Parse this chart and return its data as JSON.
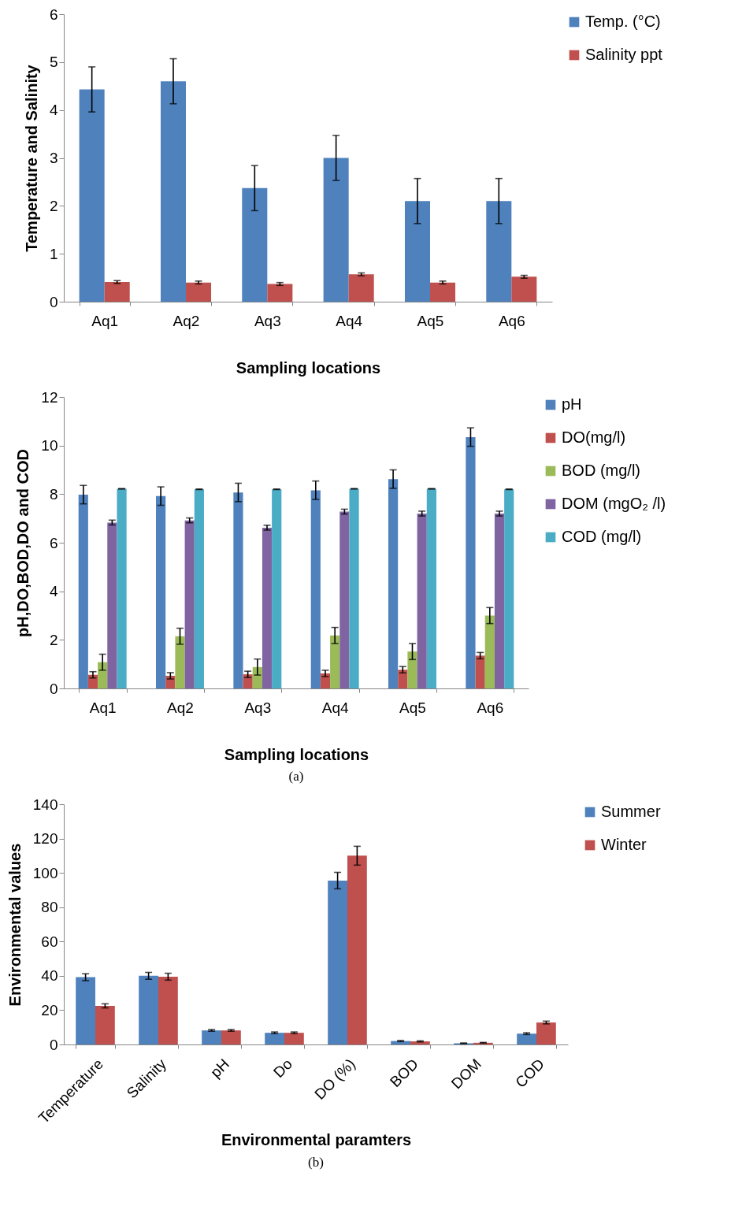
{
  "chart_data": [
    {
      "type": "bar",
      "xlabel": "Sampling locations",
      "ylabel": "Temperature and  Salinity",
      "categories": [
        "Aq1",
        "Aq2",
        "Aq3",
        "Aq4",
        "Aq5",
        "Aq6"
      ],
      "series": [
        {
          "name": "Temp. (°C)",
          "color": "#4f81bd",
          "values": [
            4.43,
            4.6,
            2.37,
            3.0,
            2.1,
            2.1
          ],
          "errors": [
            0.47,
            0.47,
            0.47,
            0.47,
            0.47,
            0.47
          ]
        },
        {
          "name": "Salinity ppt",
          "color": "#c0504d",
          "values": [
            0.41,
            0.4,
            0.37,
            0.57,
            0.4,
            0.52
          ],
          "errors": [
            0.03,
            0.03,
            0.03,
            0.03,
            0.03,
            0.03
          ]
        }
      ],
      "ylim": [
        0,
        6
      ],
      "yticks": [
        0,
        1,
        2,
        3,
        4,
        5,
        6
      ],
      "grid": false,
      "legend": "right"
    },
    {
      "type": "bar",
      "xlabel": "Sampling locations",
      "ylabel": "pH,DO,BOD,DO  and COD",
      "categories": [
        "Aq1",
        "Aq2",
        "Aq3",
        "Aq4",
        "Aq5",
        "Aq6"
      ],
      "series": [
        {
          "name": "pH",
          "color": "#4f81bd",
          "values": [
            7.98,
            7.92,
            8.07,
            8.16,
            8.62,
            10.35
          ],
          "errors": [
            0.38,
            0.38,
            0.38,
            0.38,
            0.38,
            0.38
          ]
        },
        {
          "name": "DO(mg/l)",
          "color": "#c0504d",
          "values": [
            0.56,
            0.52,
            0.58,
            0.62,
            0.77,
            1.35
          ],
          "errors": [
            0.13,
            0.13,
            0.13,
            0.13,
            0.13,
            0.13
          ]
        },
        {
          "name": "BOD (mg/l)",
          "color": "#9bbb59",
          "values": [
            1.08,
            2.15,
            0.88,
            2.18,
            1.52,
            3.0
          ],
          "errors": [
            0.33,
            0.33,
            0.33,
            0.33,
            0.33,
            0.33
          ]
        },
        {
          "name": "DOM (mgO₂ /l)",
          "color": "#8064a2",
          "values": [
            6.83,
            6.92,
            6.62,
            7.28,
            7.2,
            7.2
          ],
          "errors": [
            0.1,
            0.1,
            0.1,
            0.1,
            0.1,
            0.1
          ]
        },
        {
          "name": "COD (mg/l)",
          "color": "#4bacc6",
          "values": [
            8.22,
            8.2,
            8.2,
            8.22,
            8.22,
            8.2
          ],
          "errors": [
            0.01,
            0.01,
            0.01,
            0.01,
            0.01,
            0.01
          ]
        }
      ],
      "ylim": [
        0,
        12
      ],
      "yticks": [
        0,
        2,
        4,
        6,
        8,
        10,
        12
      ],
      "grid": false,
      "legend": "right",
      "annotations": [
        "(a)"
      ]
    },
    {
      "type": "bar",
      "xlabel": "Environmental paramters",
      "ylabel": "Environmental values",
      "categories": [
        "Temperature",
        "Salinity",
        "pH",
        "Do",
        "DO (%)",
        "BOD",
        "DOM",
        "COD"
      ],
      "series": [
        {
          "name": "Summer",
          "color": "#4f81bd",
          "values": [
            39.2,
            40,
            8.2,
            6.8,
            95.5,
            2,
            0.7,
            6.3
          ],
          "errors": [
            2,
            2,
            0.5,
            0.5,
            4.8,
            0.3,
            0.2,
            0.5
          ]
        },
        {
          "name": "Winter",
          "color": "#c0504d",
          "values": [
            22.5,
            39.5,
            8.2,
            6.8,
            110,
            1.8,
            1,
            12.8
          ],
          "errors": [
            1.2,
            2,
            0.5,
            0.5,
            5.5,
            0.3,
            0.2,
            0.8
          ]
        }
      ],
      "ylim": [
        0,
        140
      ],
      "yticks": [
        0,
        20,
        40,
        60,
        80,
        100,
        120,
        140
      ],
      "grid": false,
      "legend": "right",
      "annotations": [
        "(b)"
      ]
    }
  ]
}
